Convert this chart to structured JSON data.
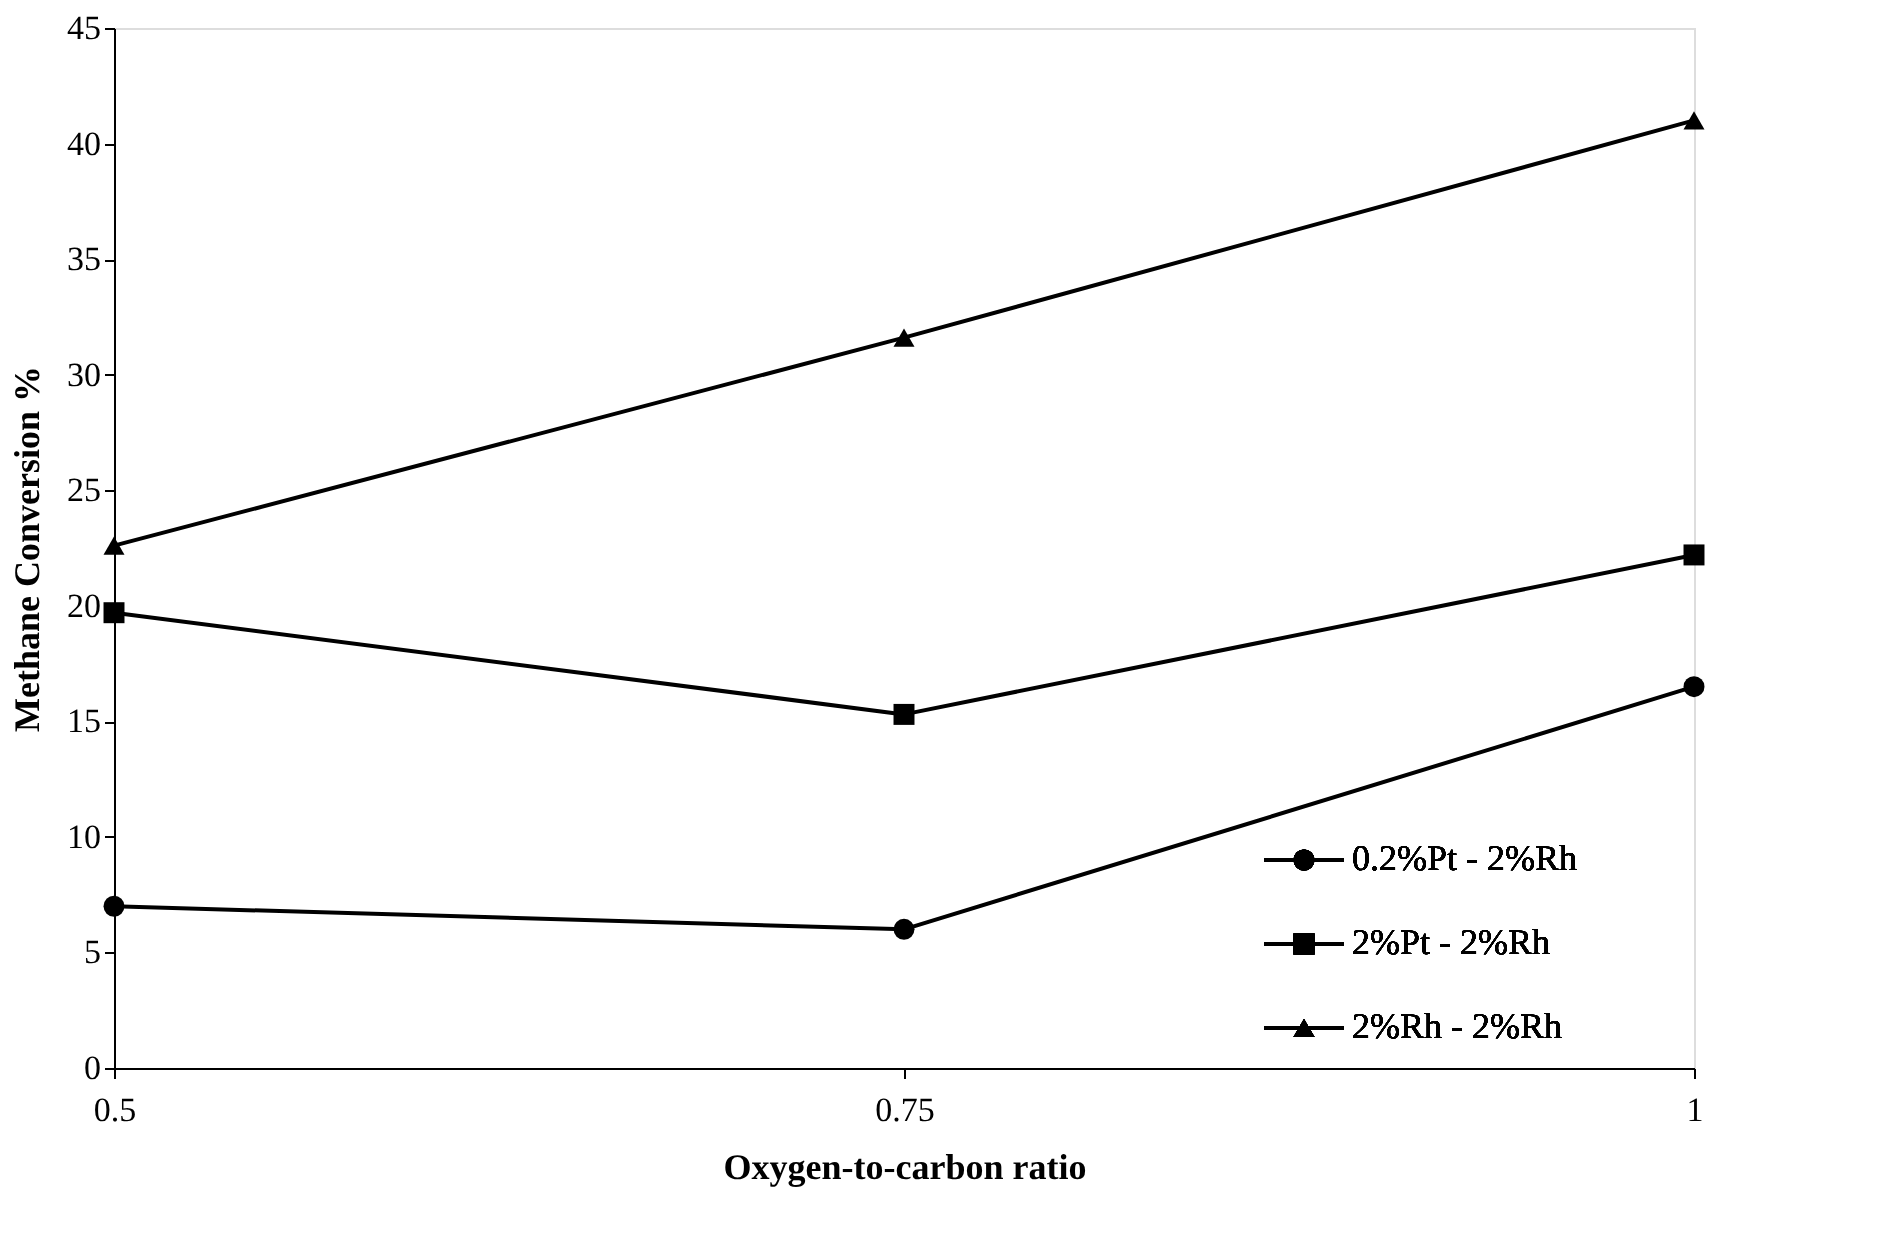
{
  "chart_data": {
    "type": "line",
    "xlabel": "Oxygen-to-carbon  ratio",
    "ylabel": "Methane Conversion %",
    "x": [
      0.5,
      0.75,
      1
    ],
    "series": [
      {
        "name": "0.2%Pt - 2%Rh",
        "color": "#000000",
        "marker": "circle",
        "values": [
          7.0,
          6.0,
          16.5
        ]
      },
      {
        "name": "2%Pt - 2%Rh",
        "color": "#000000",
        "marker": "square",
        "values": [
          19.7,
          15.3,
          22.2
        ]
      },
      {
        "name": "2%Rh - 2%Rh",
        "color": "#000000",
        "marker": "triangle",
        "values": [
          22.6,
          31.6,
          41.0
        ]
      }
    ],
    "xlim": [
      0.5,
      1
    ],
    "xticks": [
      0.5,
      0.75,
      1
    ],
    "ylim": [
      0,
      45
    ],
    "yticks": [
      0,
      5,
      10,
      15,
      20,
      25,
      30,
      35,
      40,
      45
    ],
    "grid": false,
    "legend": "bottom right",
    "line_style": "solid"
  }
}
